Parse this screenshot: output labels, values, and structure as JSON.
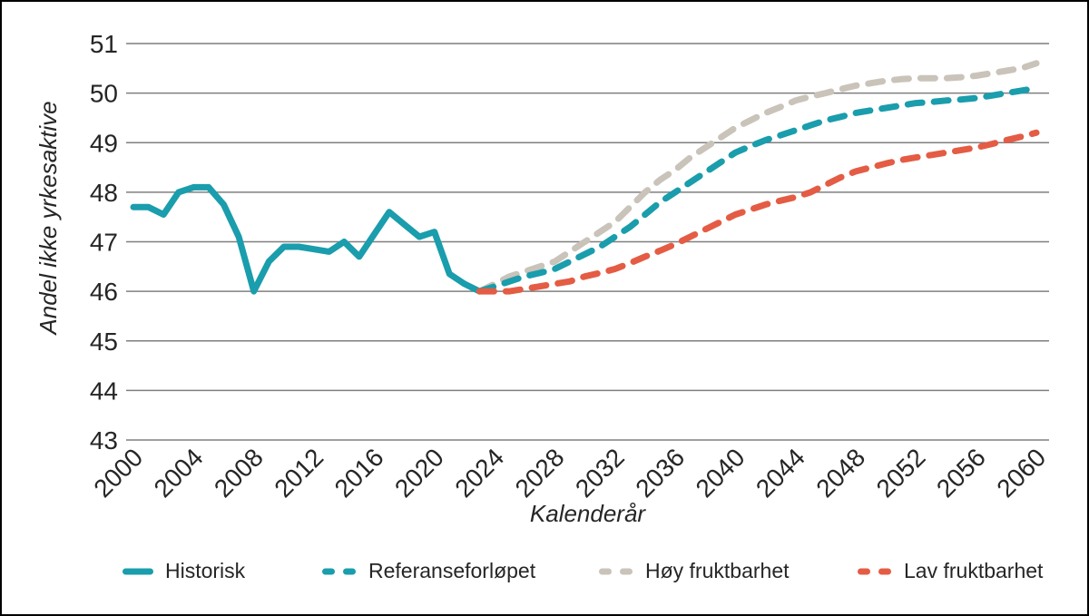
{
  "chart_data": {
    "type": "line",
    "title": "",
    "xlabel": "Kalenderår",
    "ylabel": "Andel ikke yrkesaktive",
    "xlim": [
      2000,
      2060
    ],
    "ylim": [
      43,
      51
    ],
    "x_ticks": [
      2000,
      2004,
      2008,
      2012,
      2016,
      2020,
      2024,
      2028,
      2032,
      2036,
      2040,
      2044,
      2048,
      2052,
      2056,
      2060
    ],
    "y_ticks": [
      43,
      44,
      45,
      46,
      47,
      48,
      49,
      50,
      51
    ],
    "grid": "horizontal",
    "legend_position": "bottom",
    "colors": {
      "teal": "#1A9DAC",
      "gray": "#C9C3BA",
      "red": "#E45C44",
      "gridline": "#7F7F7F",
      "text": "#262626"
    },
    "series": [
      {
        "name": "Historisk",
        "color": "#1A9DAC",
        "style": "solid",
        "points": [
          [
            2000,
            47.7
          ],
          [
            2001,
            47.7
          ],
          [
            2002,
            47.55
          ],
          [
            2003,
            48.0
          ],
          [
            2004,
            48.1
          ],
          [
            2005,
            48.1
          ],
          [
            2006,
            47.75
          ],
          [
            2007,
            47.1
          ],
          [
            2008,
            46.0
          ],
          [
            2009,
            46.6
          ],
          [
            2010,
            46.9
          ],
          [
            2011,
            46.9
          ],
          [
            2012,
            46.85
          ],
          [
            2013,
            46.8
          ],
          [
            2014,
            47.0
          ],
          [
            2015,
            46.7
          ],
          [
            2016,
            47.15
          ],
          [
            2017,
            47.6
          ],
          [
            2018,
            47.35
          ],
          [
            2019,
            47.1
          ],
          [
            2020,
            47.2
          ],
          [
            2021,
            46.35
          ],
          [
            2022,
            46.15
          ],
          [
            2023,
            46.0
          ]
        ]
      },
      {
        "name": "Referanseforløpet",
        "color": "#1A9DAC",
        "style": "dashed",
        "points": [
          [
            2023,
            46.0
          ],
          [
            2024,
            46.1
          ],
          [
            2025,
            46.2
          ],
          [
            2026,
            46.3
          ],
          [
            2027,
            46.37
          ],
          [
            2028,
            46.45
          ],
          [
            2029,
            46.6
          ],
          [
            2030,
            46.75
          ],
          [
            2031,
            46.9
          ],
          [
            2032,
            47.1
          ],
          [
            2033,
            47.3
          ],
          [
            2034,
            47.55
          ],
          [
            2035,
            47.8
          ],
          [
            2036,
            48.0
          ],
          [
            2037,
            48.2
          ],
          [
            2038,
            48.4
          ],
          [
            2039,
            48.6
          ],
          [
            2040,
            48.8
          ],
          [
            2041,
            48.93
          ],
          [
            2042,
            49.05
          ],
          [
            2043,
            49.15
          ],
          [
            2044,
            49.25
          ],
          [
            2045,
            49.35
          ],
          [
            2046,
            49.45
          ],
          [
            2047,
            49.52
          ],
          [
            2048,
            49.6
          ],
          [
            2049,
            49.65
          ],
          [
            2050,
            49.7
          ],
          [
            2051,
            49.75
          ],
          [
            2052,
            49.8
          ],
          [
            2053,
            49.82
          ],
          [
            2054,
            49.85
          ],
          [
            2055,
            49.87
          ],
          [
            2056,
            49.9
          ],
          [
            2057,
            49.95
          ],
          [
            2058,
            50.0
          ],
          [
            2059,
            50.05
          ],
          [
            2060,
            50.1
          ]
        ]
      },
      {
        "name": "Høy fruktbarhet",
        "color": "#C9C3BA",
        "style": "dashed",
        "points": [
          [
            2023,
            46.0
          ],
          [
            2024,
            46.15
          ],
          [
            2025,
            46.3
          ],
          [
            2026,
            46.4
          ],
          [
            2027,
            46.5
          ],
          [
            2028,
            46.6
          ],
          [
            2029,
            46.8
          ],
          [
            2030,
            47.0
          ],
          [
            2031,
            47.2
          ],
          [
            2032,
            47.4
          ],
          [
            2033,
            47.7
          ],
          [
            2034,
            48.0
          ],
          [
            2035,
            48.25
          ],
          [
            2036,
            48.45
          ],
          [
            2037,
            48.7
          ],
          [
            2038,
            48.9
          ],
          [
            2039,
            49.1
          ],
          [
            2040,
            49.3
          ],
          [
            2041,
            49.45
          ],
          [
            2042,
            49.6
          ],
          [
            2043,
            49.72
          ],
          [
            2044,
            49.85
          ],
          [
            2045,
            49.93
          ],
          [
            2046,
            50.0
          ],
          [
            2047,
            50.08
          ],
          [
            2048,
            50.15
          ],
          [
            2049,
            50.2
          ],
          [
            2050,
            50.25
          ],
          [
            2051,
            50.28
          ],
          [
            2052,
            50.3
          ],
          [
            2053,
            50.3
          ],
          [
            2054,
            50.3
          ],
          [
            2055,
            50.32
          ],
          [
            2056,
            50.35
          ],
          [
            2057,
            50.4
          ],
          [
            2058,
            50.45
          ],
          [
            2059,
            50.5
          ],
          [
            2060,
            50.6
          ]
        ]
      },
      {
        "name": "Lav fruktbarhet",
        "color": "#E45C44",
        "style": "dashed",
        "points": [
          [
            2023,
            46.0
          ],
          [
            2024,
            46.0
          ],
          [
            2025,
            46.0
          ],
          [
            2026,
            46.05
          ],
          [
            2027,
            46.1
          ],
          [
            2028,
            46.15
          ],
          [
            2029,
            46.2
          ],
          [
            2030,
            46.3
          ],
          [
            2031,
            46.37
          ],
          [
            2032,
            46.45
          ],
          [
            2033,
            46.57
          ],
          [
            2034,
            46.7
          ],
          [
            2035,
            46.82
          ],
          [
            2036,
            46.95
          ],
          [
            2037,
            47.1
          ],
          [
            2038,
            47.25
          ],
          [
            2039,
            47.4
          ],
          [
            2040,
            47.55
          ],
          [
            2041,
            47.65
          ],
          [
            2042,
            47.75
          ],
          [
            2043,
            47.83
          ],
          [
            2044,
            47.9
          ],
          [
            2045,
            48.0
          ],
          [
            2046,
            48.15
          ],
          [
            2047,
            48.3
          ],
          [
            2048,
            48.42
          ],
          [
            2049,
            48.5
          ],
          [
            2050,
            48.58
          ],
          [
            2051,
            48.65
          ],
          [
            2052,
            48.7
          ],
          [
            2053,
            48.75
          ],
          [
            2054,
            48.8
          ],
          [
            2055,
            48.85
          ],
          [
            2056,
            48.9
          ],
          [
            2057,
            48.97
          ],
          [
            2058,
            49.05
          ],
          [
            2059,
            49.12
          ],
          [
            2060,
            49.2
          ]
        ]
      }
    ]
  },
  "legend": {
    "items": [
      {
        "label": "Historisk"
      },
      {
        "label": "Referanseforløpet"
      },
      {
        "label": "Høy fruktbarhet"
      },
      {
        "label": "Lav fruktbarhet"
      }
    ]
  }
}
